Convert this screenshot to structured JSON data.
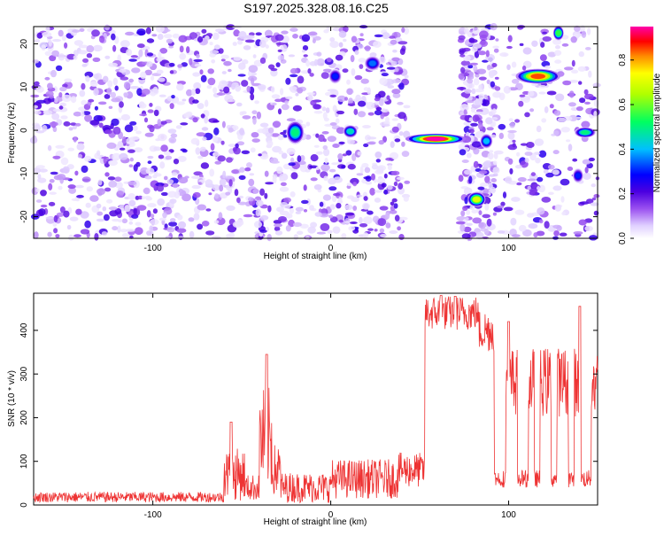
{
  "title": "S197.2025.328.08.16.C25",
  "chart_data": [
    {
      "type": "heatmap",
      "xlabel": "Height of straight line (km)",
      "ylabel": "Frequency (Hz)",
      "xlim": [
        -167,
        150
      ],
      "ylim": [
        -25,
        24
      ],
      "xticks": [
        -100,
        0,
        100
      ],
      "yticks": [
        -20,
        -10,
        0,
        10,
        20
      ],
      "colorbar": {
        "label": "Normalized spectral amplitude",
        "range": [
          0,
          0.95
        ],
        "ticks": [
          0.0,
          0.2,
          0.4,
          0.6,
          0.8
        ],
        "colors": [
          "#ffffff",
          "#d6b8ff",
          "#8a2be2",
          "#5a00e0",
          "#0000ff",
          "#00c8ff",
          "#00ff7f",
          "#7fff00",
          "#ffff00",
          "#ff8800",
          "#ff0000",
          "#ff00aa"
        ]
      },
      "noise_regions": [
        {
          "x": [
            -167,
            43
          ],
          "density": "high"
        },
        {
          "x": [
            73,
            92
          ],
          "density": "medium"
        },
        {
          "x": [
            92,
            150
          ],
          "density": "medium"
        }
      ],
      "features": [
        {
          "x": [
            43,
            75
          ],
          "freq": [
            -3,
            -1
          ],
          "peak": 0.95
        },
        {
          "x": [
            78,
            86
          ],
          "freq": [
            -17.5,
            -14.5
          ],
          "peak": 0.7
        },
        {
          "x": [
            105,
            128
          ],
          "freq": [
            11,
            14
          ],
          "peak": 0.85
        },
        {
          "x": [
            138,
            148
          ],
          "freq": [
            -1.5,
            0.5
          ],
          "peak": 0.5
        },
        {
          "x": [
            126,
            130
          ],
          "freq": [
            21,
            24
          ],
          "peak": 0.55
        },
        {
          "x": [
            85,
            90
          ],
          "freq": [
            -4,
            -1
          ],
          "peak": 0.4
        },
        {
          "x": [
            8,
            14
          ],
          "freq": [
            -1.5,
            1
          ],
          "peak": 0.45
        },
        {
          "x": [
            -24,
            -16
          ],
          "freq": [
            -3,
            2
          ],
          "peak": 0.5
        },
        {
          "x": [
            20,
            27
          ],
          "freq": [
            14,
            17
          ],
          "peak": 0.35
        },
        {
          "x": [
            0,
            5
          ],
          "freq": [
            11,
            14
          ],
          "peak": 0.3
        },
        {
          "x": [
            137,
            141
          ],
          "freq": [
            -12,
            -9
          ],
          "peak": 0.3
        }
      ]
    },
    {
      "type": "line",
      "xlabel": "Height of straight line (km)",
      "ylabel": "SNR (10 * v/v)",
      "xlim": [
        -167,
        150
      ],
      "ylim": [
        0,
        485
      ],
      "xticks": [
        -100,
        0,
        100
      ],
      "yticks": [
        0,
        100,
        200,
        300,
        400
      ],
      "color": "#ee3333",
      "segments": [
        {
          "x": [
            -167,
            -60
          ],
          "base": 18,
          "noise": 12
        },
        {
          "x": [
            -60,
            -48
          ],
          "base": 70,
          "noise": 60
        },
        {
          "x": [
            -48,
            -40
          ],
          "base": 40,
          "noise": 30
        },
        {
          "x": [
            -40,
            -33
          ],
          "base": 150,
          "noise": 120
        },
        {
          "x": [
            -33,
            -28
          ],
          "base": 80,
          "noise": 60
        },
        {
          "x": [
            -28,
            0
          ],
          "base": 40,
          "noise": 35
        },
        {
          "x": [
            0,
            38
          ],
          "base": 60,
          "noise": 45
        },
        {
          "x": [
            38,
            53
          ],
          "base": 80,
          "noise": 40
        },
        {
          "x": [
            53,
            83
          ],
          "base": 440,
          "noise": 40
        },
        {
          "x": [
            83,
            92
          ],
          "base": 400,
          "noise": 50
        },
        {
          "x": [
            92,
            150
          ],
          "base": 220,
          "noise": 180
        }
      ],
      "peaks": [
        {
          "x": -56,
          "y": 190
        },
        {
          "x": -36,
          "y": 345
        },
        {
          "x": 62,
          "y": 480
        },
        {
          "x": 70,
          "y": 478
        },
        {
          "x": 140,
          "y": 455
        },
        {
          "x": 100,
          "y": 420
        }
      ]
    }
  ]
}
